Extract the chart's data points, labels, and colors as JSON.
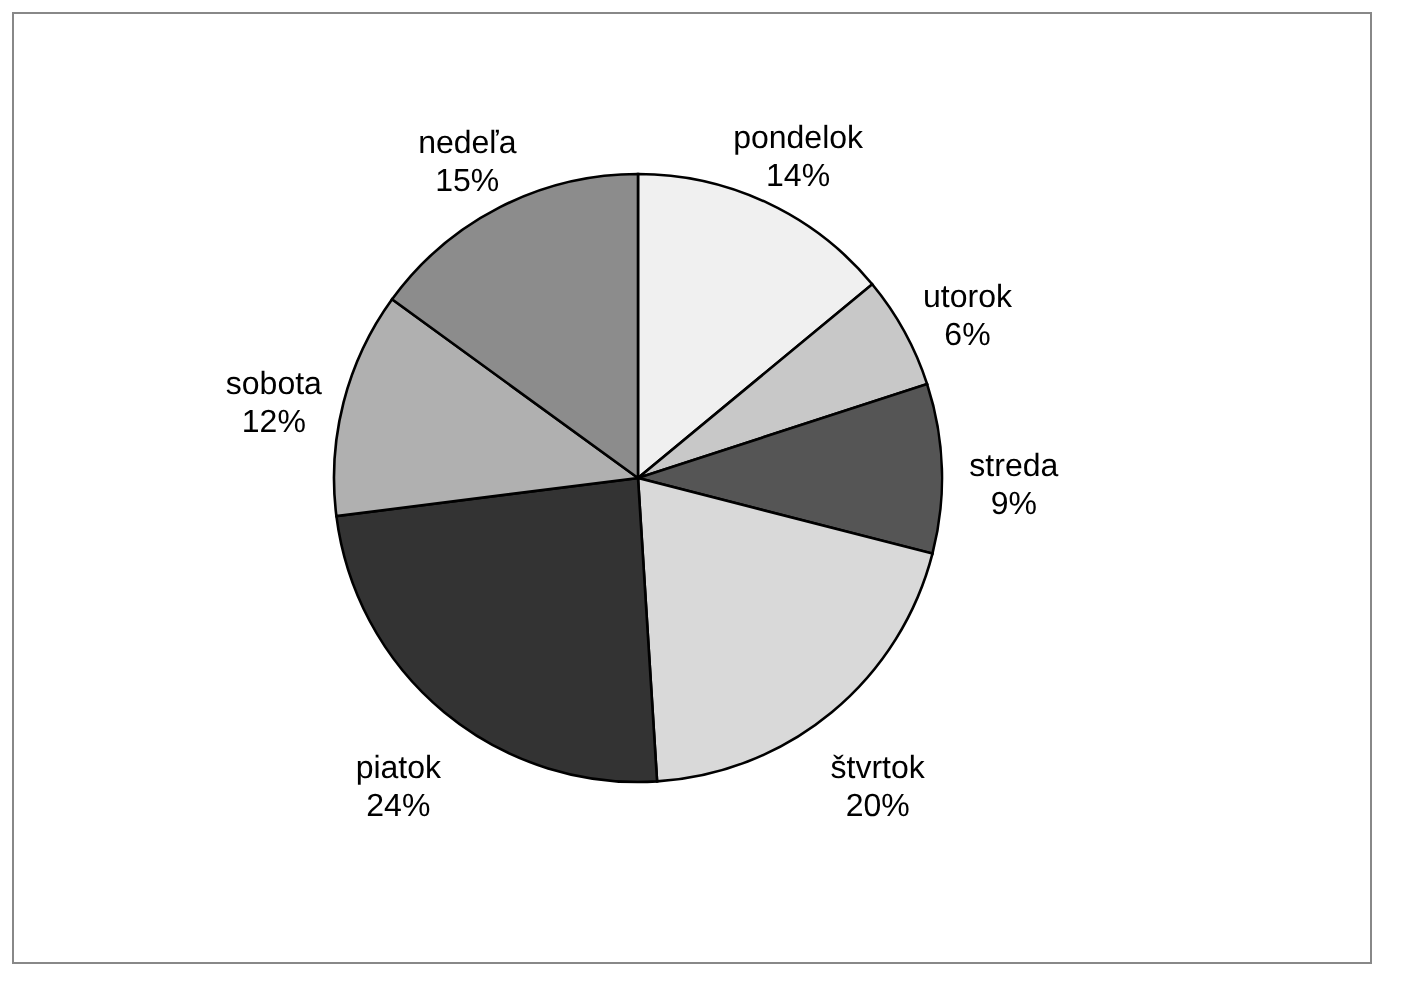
{
  "chart_data": {
    "type": "pie",
    "categories": [
      "pondelok",
      "utorok",
      "streda",
      "štvrtok",
      "piatok",
      "sobota",
      "nedeľa"
    ],
    "values": [
      14,
      6,
      9,
      20,
      24,
      12,
      15
    ],
    "value_labels": [
      "14%",
      "6%",
      "9%",
      "20%",
      "24%",
      "12%",
      "15%"
    ],
    "colors": [
      "#f0f0f0",
      "#c8c8c8",
      "#555555",
      "#d9d9d9",
      "#333333",
      "#b0b0b0",
      "#8c8c8c"
    ]
  }
}
